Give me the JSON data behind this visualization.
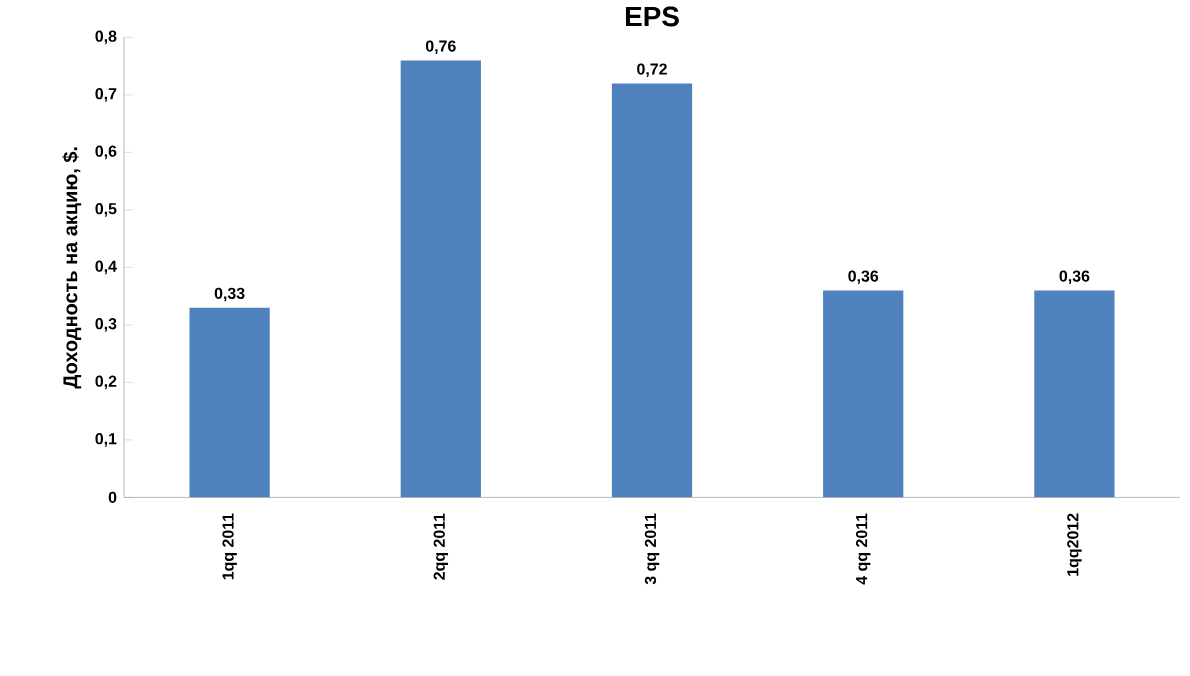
{
  "chart_data": {
    "type": "bar",
    "title": "EPS",
    "ylabel": "Доходность на акцию, $.",
    "categories": [
      "1qq 2011",
      "2qq 2011",
      "3 qq 2011",
      "4 qq 2011",
      "1qq2012"
    ],
    "values": [
      0.33,
      0.76,
      0.72,
      0.36,
      0.36
    ],
    "value_labels": [
      "0,33",
      "0,76",
      "0,72",
      "0,36",
      "0,36"
    ],
    "color": "#4f81bd",
    "ylim": [
      0,
      0.8
    ],
    "yticks": [
      0,
      {
        "value": 0.1,
        "label": "0,1"
      },
      {
        "value": 0.2,
        "label": "0,2"
      },
      {
        "value": 0.3,
        "label": "0,3"
      },
      {
        "value": 0.4,
        "label": "0,4"
      },
      {
        "value": 0.5,
        "label": "0,5"
      },
      {
        "value": 0.6,
        "label": "0,6"
      },
      {
        "value": 0.7,
        "label": "0,7"
      },
      {
        "value": 0.8,
        "label": "0,8"
      }
    ],
    "grid": false
  }
}
